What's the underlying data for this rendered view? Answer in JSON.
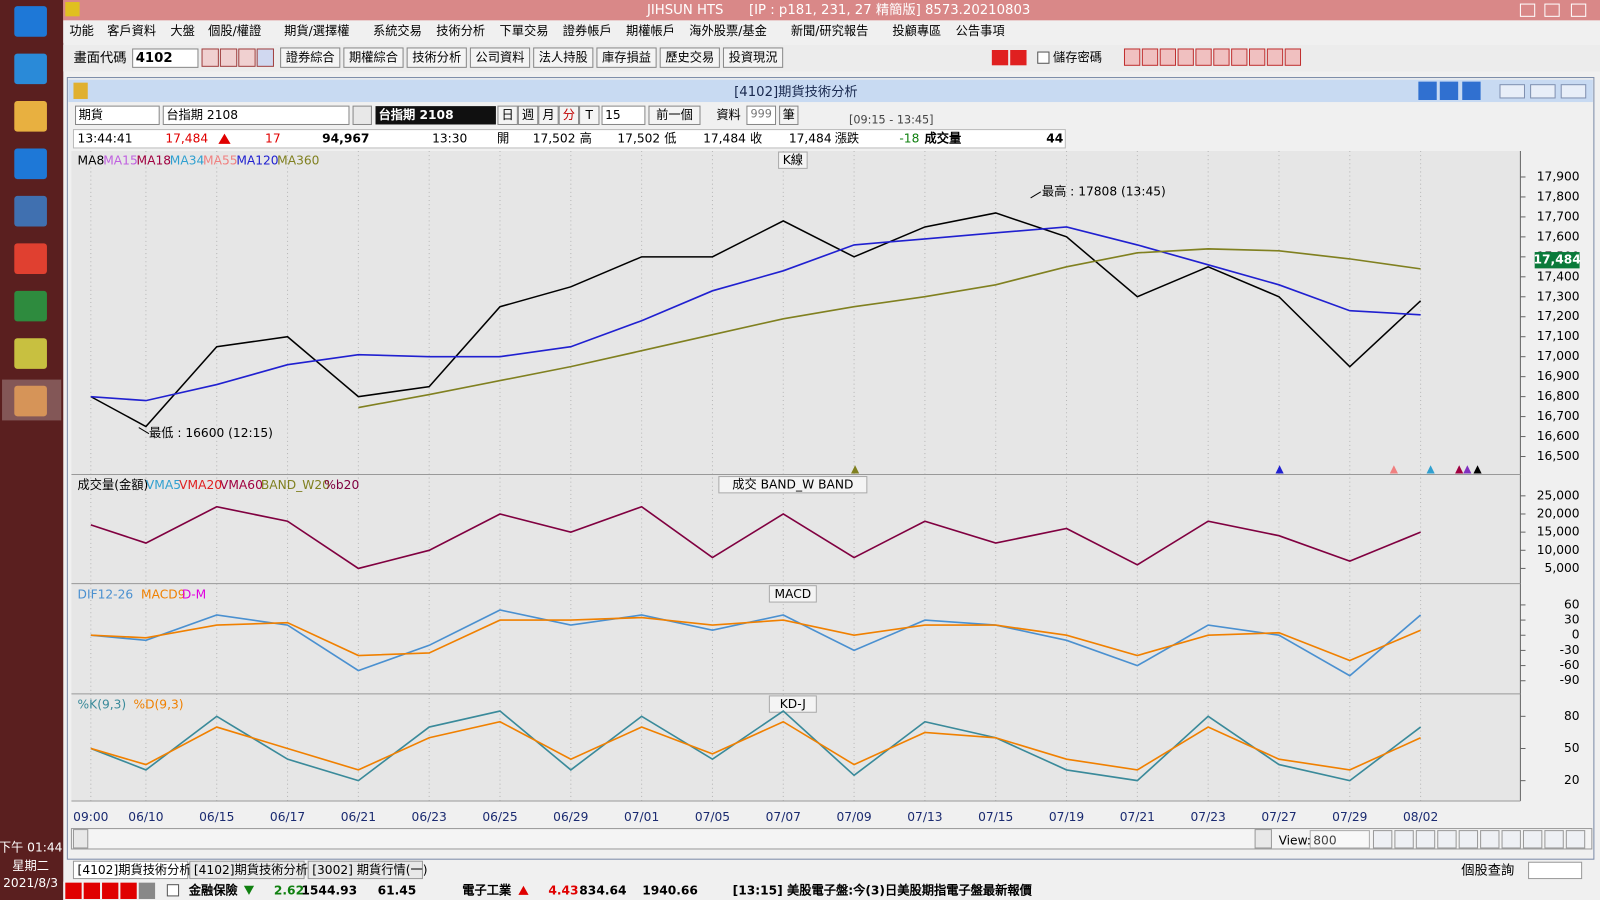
{
  "window": {
    "app": "JIHSUN HTS",
    "info": "[IP : p181, 231, 27 精簡版] 8573.20210803"
  },
  "menu": [
    "功能",
    "客戶資料",
    "大盤",
    "個股/權證",
    "期貨/選擇權",
    "系統交易",
    "技術分析",
    "下單交易",
    "證券帳戶",
    "期權帳戶",
    "海外股票/基金",
    "新聞/研究報告",
    "投顧專區",
    "公告事項"
  ],
  "toolbar": {
    "code_label": "畫面代碼",
    "code": "4102",
    "buttons": [
      "證券綜合",
      "期權綜合",
      "技術分析",
      "公司資料",
      "法人持股",
      "庫存損益",
      "歷史交易",
      "投資現況"
    ],
    "save_password": "儲存密碼"
  },
  "panel": {
    "title": "[4102]期貨技術分析",
    "market": "期貨",
    "symbol": "台指期 2108",
    "symbol_box": "台指期 2108",
    "periods": [
      "日",
      "週",
      "月",
      "分",
      "T"
    ],
    "interval": "15",
    "prev": "前一個",
    "data_label": "資料",
    "data_count": "999",
    "unit": "筆",
    "time_range": "[09:15 - 13:45]"
  },
  "quote": {
    "time": "13:44:41",
    "price": "17,484",
    "change": "17",
    "total": "94,967",
    "bar_time": "13:30",
    "open_label": "開",
    "open": "17,502",
    "high_label": "高",
    "high": "17,502",
    "low_label": "低",
    "low": "17,484",
    "close_label": "收",
    "close": "17,484",
    "chg_label": "漲跌",
    "chg": "-18",
    "vol_label": "成交量",
    "vol": "44"
  },
  "charts": {
    "categories": [
      "09:00",
      "06/10",
      "06/15",
      "06/17",
      "06/21",
      "06/23",
      "06/25",
      "06/29",
      "07/01",
      "07/05",
      "07/07",
      "07/09",
      "07/13",
      "07/15",
      "07/19",
      "07/21",
      "07/23",
      "07/27",
      "07/29",
      "08/02"
    ],
    "kline": {
      "title": "K線",
      "last_price": "17,484",
      "high_note": "最高 : 17808 (13:45)",
      "low_note": "最低 : 16600 (12:15)",
      "ylim": [
        16410,
        18030
      ],
      "yticks": [
        {
          "value": 17900,
          "label": "17,900"
        },
        {
          "value": 17800,
          "label": "17,800"
        },
        {
          "value": 17700,
          "label": "17,700"
        },
        {
          "value": 17600,
          "label": "17,600"
        },
        {
          "value": 17500,
          "label": "17,500"
        },
        {
          "value": 17400,
          "label": "17,400"
        },
        {
          "value": 17300,
          "label": "17,300"
        },
        {
          "value": 17200,
          "label": "17,200"
        },
        {
          "value": 17100,
          "label": "17,100"
        },
        {
          "value": 17000,
          "label": "17,000"
        },
        {
          "value": 16900,
          "label": "16,900"
        },
        {
          "value": 16800,
          "label": "16,800"
        },
        {
          "value": 16700,
          "label": "16,700"
        },
        {
          "value": 16600,
          "label": "16,600"
        },
        {
          "value": 16500,
          "label": "16,500"
        }
      ],
      "series": [
        {
          "name": "MA8",
          "color": "#000000",
          "values": [
            16800,
            16650,
            17050,
            17100,
            16800,
            16850,
            17250,
            17350,
            17500,
            17500,
            17680,
            17500,
            17650,
            17720,
            17600,
            17300,
            17450,
            17300,
            16950,
            17280
          ]
        },
        {
          "name": "MA15",
          "color": "#c060e0"
        },
        {
          "name": "MA18",
          "color": "#a00040"
        },
        {
          "name": "MA34",
          "color": "#30a0d0"
        },
        {
          "name": "MA55",
          "color": "#f08080"
        },
        {
          "name": "MA120",
          "color": "#2020d0",
          "values": [
            16800,
            16780,
            16860,
            16960,
            17010,
            17000,
            17000,
            17050,
            17180,
            17330,
            17430,
            17560,
            17590,
            17620,
            17650,
            17560,
            17460,
            17360,
            17230,
            17210
          ]
        },
        {
          "name": "MA360",
          "color": "#808020",
          "values": [
            null,
            null,
            null,
            null,
            16745,
            16810,
            16880,
            16950,
            17030,
            17110,
            17190,
            17250,
            17300,
            17360,
            17450,
            17520,
            17540,
            17530,
            17490,
            17440
          ]
        }
      ]
    },
    "volume": {
      "title": "成交   BAND_W   BAND",
      "label": "成交量(金額)",
      "ylim": [
        800,
        30600
      ],
      "yticks": [
        {
          "value": 25000,
          "label": "25,000"
        },
        {
          "value": 20000,
          "label": "20,000"
        },
        {
          "value": 15000,
          "label": "15,000"
        },
        {
          "value": 10000,
          "label": "10,000"
        },
        {
          "value": 5000,
          "label": "5,000"
        }
      ],
      "series": [
        {
          "name": "VMA5",
          "color": "#30a0d0"
        },
        {
          "name": "VMA20",
          "color": "#e02020"
        },
        {
          "name": "VMA60",
          "color": "#a00040"
        },
        {
          "name": "BAND_W20",
          "color": "#808020"
        },
        {
          "name": "%b20",
          "color": "#800040",
          "values": [
            17000,
            12000,
            22000,
            18000,
            5000,
            10000,
            20000,
            15000,
            22000,
            8000,
            20000,
            8000,
            18000,
            12000,
            16000,
            6000,
            18000,
            14000,
            7000,
            15000
          ]
        }
      ]
    },
    "macd": {
      "title": "MACD",
      "ylim": [
        -116,
        100
      ],
      "yticks": [
        60,
        30,
        0,
        -30,
        -60,
        -90
      ],
      "series": [
        {
          "name": "DIF12-26",
          "color": "#4a90d0",
          "values": [
            0,
            -10,
            40,
            20,
            -70,
            -20,
            50,
            20,
            40,
            10,
            40,
            -30,
            30,
            20,
            -10,
            -60,
            20,
            0,
            -80,
            40
          ]
        },
        {
          "name": "MACD9",
          "color": "#f08000",
          "values": [
            0,
            -5,
            20,
            25,
            -40,
            -35,
            30,
            30,
            35,
            20,
            30,
            0,
            20,
            20,
            0,
            -40,
            0,
            5,
            -50,
            10
          ]
        },
        {
          "name": "D-M",
          "color": "#e000e0"
        }
      ]
    },
    "kd": {
      "title": "KD-J",
      "ylim": [
        1,
        100
      ],
      "yticks": [
        80,
        50,
        20
      ],
      "series": [
        {
          "name": "%K(9,3)",
          "color": "#3a8a9a",
          "values": [
            50,
            30,
            80,
            40,
            20,
            70,
            85,
            30,
            80,
            40,
            85,
            25,
            75,
            60,
            30,
            20,
            80,
            35,
            20,
            70
          ]
        },
        {
          "name": "%D(9,3)",
          "color": "#f08000",
          "values": [
            50,
            35,
            70,
            50,
            30,
            60,
            75,
            40,
            70,
            45,
            75,
            35,
            65,
            60,
            40,
            30,
            70,
            40,
            30,
            60
          ]
        }
      ]
    }
  },
  "scroll": {
    "view_label": "View:",
    "view": "800"
  },
  "tabs": [
    "[4102]期貨技術分析",
    "[4102]期貨技術分析",
    "[3002]  期貨行情(一)"
  ],
  "search": "個股查詢",
  "ticker": {
    "sector1": "金融保險",
    "chg1": "2.62",
    "index1": "1544.93",
    "amt1": "61.45",
    "sector2": "電子工業",
    "chg2": "4.43",
    "index2": "834.64",
    "amt2": "1940.66",
    "news": "[13:15]  美股電子盤:今(3)日美股期指電子盤最新報價"
  },
  "clock": {
    "time": "下午 01:44",
    "weekday": "星期二",
    "date": "2021/8/3"
  }
}
